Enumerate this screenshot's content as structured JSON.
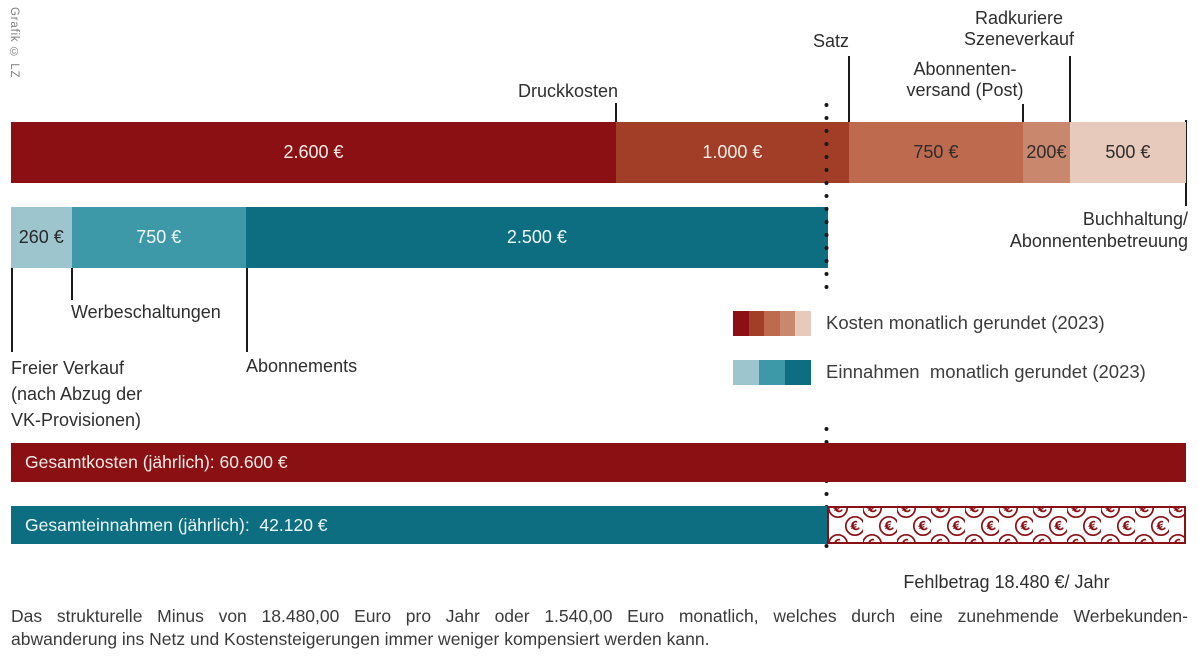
{
  "credit": "Grafik © LZ",
  "colors": {
    "cost": [
      "#8A1014",
      "#A23E28",
      "#BE6A4E",
      "#C9886D",
      "#E7CABB"
    ],
    "cost_text": [
      "#F6EEE8",
      "#F6EEE8",
      "#2D2D2D",
      "#2D2D2D",
      "#2D2D2D"
    ],
    "revenue": [
      "#9CC5CE",
      "#3D99A8",
      "#0C6E80"
    ],
    "revenue_text": [
      "#282828",
      "#F3F7F7",
      "#F3F7F7"
    ],
    "dark_red": "#8A1014",
    "dark_teal": "#0C6E80",
    "dots": "#1A1A1A"
  },
  "chart_data": {
    "type": "bar",
    "subtype": "proportional-stacked-horizontal",
    "unit": "Euro pro Monat",
    "year": "2023",
    "series": [
      {
        "name": "Kosten monatlich gerundet (2023)",
        "total": 5050,
        "segments": [
          {
            "label": "Druckkosten",
            "value": 2600,
            "display": "2.600 €"
          },
          {
            "label": "Satz",
            "value": 1000,
            "display": "1.000 €"
          },
          {
            "label": "Abonnentenversand (Post)",
            "value": 750,
            "display": "750 €"
          },
          {
            "label": "Radkuriere Szeneverkauf",
            "value": 200,
            "display": "200€"
          },
          {
            "label": "Buchhaltung/Abonnentenbetreuung",
            "value": 500,
            "display": "500 €"
          }
        ]
      },
      {
        "name": "Einnahmen monatlich gerundet (2023)",
        "total": 3510,
        "segments": [
          {
            "label": "Freier Verkauf (nach Abzug der VK-Provisionen)",
            "value": 260,
            "display": "260 €"
          },
          {
            "label": "Werbeschaltungen",
            "value": 750,
            "display": "750 €"
          },
          {
            "label": "Abonnements",
            "value": 2500,
            "display": "2.500 €"
          }
        ]
      }
    ],
    "totals": [
      {
        "name": "Gesamtkosten (jährlich)",
        "value": 60600,
        "display": "Gesamtkosten (jährlich): 60.600 €"
      },
      {
        "name": "Gesamteinnahmen (jährlich)",
        "value": 42120,
        "display": "Gesamteinnahmen (jährlich):  42.120 €"
      }
    ],
    "deficit": {
      "name": "Fehlbetrag",
      "value_per_year": 18480,
      "display": "Fehlbetrag 18.480 €/ Jahr",
      "pattern_symbol": "€"
    }
  },
  "callouts": {
    "druckkosten": {
      "lines": [
        "Druckkosten"
      ]
    },
    "satz": {
      "lines": [
        "Satz"
      ]
    },
    "abonnentenversand": {
      "lines": [
        "Abonnenten-",
        "versand (Post)"
      ]
    },
    "radkuriere": {
      "lines": [
        "Radkuriere",
        "Szeneverkauf"
      ]
    },
    "buchhaltung": {
      "lines": [
        "Buchhaltung/",
        "Abonnentenbetreuung"
      ]
    },
    "freier_verkauf": {
      "lines": [
        "Freier Verkauf",
        "(nach Abzug der",
        "VK-Provisionen)"
      ]
    },
    "werbeschaltungen": {
      "lines": [
        "Werbeschaltungen"
      ]
    },
    "abonnements": {
      "lines": [
        "Abonnements"
      ]
    }
  },
  "legend": {
    "kosten_label": "Kosten monatlich gerundet (2023)",
    "einnahmen_label": "Einnahmen  monatlich gerundet (2023)"
  },
  "footnote": {
    "line1": "Das strukturelle Minus von 18.480,00 Euro pro Jahr oder 1.540,00 Euro monatlich, welches durch eine zunehmende Werbekunden-",
    "line2": "abwanderung ins Netz und Kostensteigerungen immer weniger kompensiert werden kann."
  }
}
